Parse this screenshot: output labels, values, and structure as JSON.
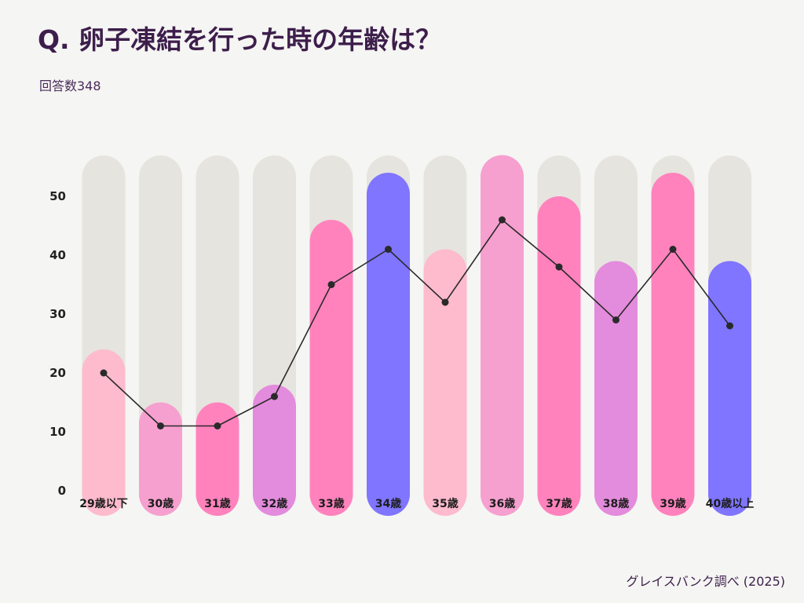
{
  "header": {
    "title": "Q. 卵子凍結を行った時の年齢は？",
    "subtitle": "回答数348"
  },
  "footer": {
    "source": "グレイスバンク調べ (2025)"
  },
  "chart_data": {
    "type": "bar",
    "title": "Q. 卵子凍結を行った時の年齢は？",
    "subtitle": "回答数348",
    "categories": [
      "29歳以下",
      "30歳",
      "31歳",
      "32歳",
      "33歳",
      "34歳",
      "35歳",
      "36歳",
      "37歳",
      "38歳",
      "39歳",
      "40歳以上"
    ],
    "values": [
      20,
      11,
      11,
      16,
      35,
      41,
      32,
      46,
      38,
      29,
      41,
      28
    ],
    "bar_heights": [
      24,
      15,
      15,
      18,
      46,
      54,
      41,
      57,
      50,
      39,
      54,
      39
    ],
    "line_values": [
      20,
      11,
      11,
      16,
      35,
      41,
      32,
      46,
      38,
      29,
      41,
      28
    ],
    "ylim": [
      0,
      60
    ],
    "yticks": [
      0,
      10,
      20,
      30,
      40,
      50
    ],
    "xlabel": "",
    "ylabel": "",
    "colors": {
      "track": "#e6e4de",
      "bars": [
        "#fdbbcd",
        "#f6a0cf",
        "#ff82bd",
        "#e38bdc",
        "#ff82bd",
        "#7f75ff",
        "#fdbbcd",
        "#f6a0cf",
        "#ff82bd",
        "#e38bdc",
        "#ff82bd",
        "#7f75ff"
      ],
      "line": "#2a2a2a",
      "marker": "#2a2a2a"
    }
  }
}
